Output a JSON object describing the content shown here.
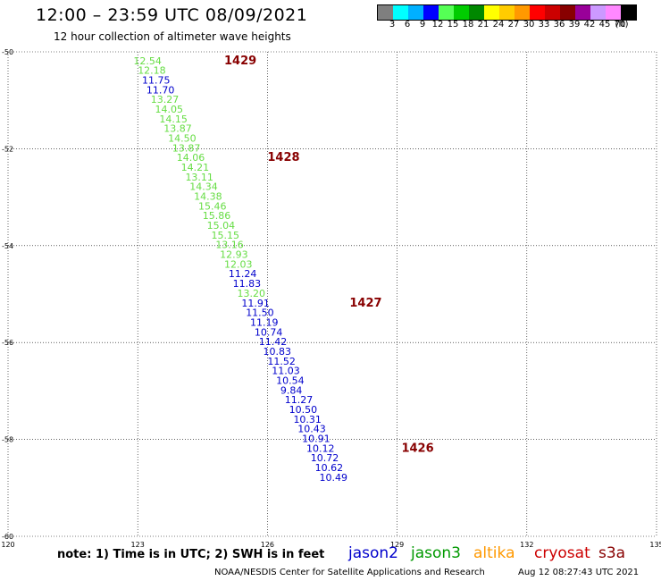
{
  "header": {
    "title": "12:00 – 23:59 UTC 08/09/2021",
    "subtitle": "12 hour collection of altimeter wave heights"
  },
  "colorbar": {
    "colors": [
      "#7f7f7f",
      "#00ffff",
      "#00b0ff",
      "#0000ff",
      "#55ff55",
      "#00cc00",
      "#008800",
      "#ffff00",
      "#ffcc00",
      "#ff9900",
      "#ff0000",
      "#cc0000",
      "#880000",
      "#990099",
      "#cc99ff",
      "#ff88ff",
      "#000000"
    ],
    "labels": [
      "3",
      "6",
      "9",
      "12",
      "15",
      "18",
      "21",
      "24",
      "27",
      "30",
      "33",
      "36",
      "39",
      "42",
      "45",
      "70",
      "(ft)"
    ]
  },
  "chart_data": {
    "type": "scatter",
    "title": "12:00 – 23:59 UTC 08/09/2021",
    "xlabel": "",
    "ylabel": "",
    "xlim": [
      120,
      135
    ],
    "ylim": [
      -60,
      -50
    ],
    "x_ticks": [
      "120",
      "123",
      "126",
      "129",
      "132",
      "135"
    ],
    "y_ticks": [
      "-50",
      "-52",
      "-54",
      "-56",
      "-58",
      "-60"
    ],
    "grid": true,
    "points": [
      {
        "lon": 122.9,
        "lat": -50.18,
        "value": "12.54",
        "sat": "jason3"
      },
      {
        "lon": 123.0,
        "lat": -50.38,
        "value": "12.18",
        "sat": "jason3"
      },
      {
        "lon": 123.1,
        "lat": -50.58,
        "value": "11.75",
        "sat": "jason2"
      },
      {
        "lon": 123.2,
        "lat": -50.78,
        "value": "11.70",
        "sat": "jason2"
      },
      {
        "lon": 123.3,
        "lat": -50.98,
        "value": "13.27",
        "sat": "jason3"
      },
      {
        "lon": 123.4,
        "lat": -51.18,
        "value": "14.05",
        "sat": "jason3"
      },
      {
        "lon": 123.5,
        "lat": -51.38,
        "value": "14.15",
        "sat": "jason3"
      },
      {
        "lon": 123.6,
        "lat": -51.58,
        "value": "13.87",
        "sat": "jason3"
      },
      {
        "lon": 123.7,
        "lat": -51.78,
        "value": "14.50",
        "sat": "jason3"
      },
      {
        "lon": 123.8,
        "lat": -51.98,
        "value": "13.87",
        "sat": "jason3"
      },
      {
        "lon": 123.9,
        "lat": -52.18,
        "value": "14.06",
        "sat": "jason3"
      },
      {
        "lon": 124.0,
        "lat": -52.38,
        "value": "14.21",
        "sat": "jason3"
      },
      {
        "lon": 124.1,
        "lat": -52.58,
        "value": "13.11",
        "sat": "jason3"
      },
      {
        "lon": 124.2,
        "lat": -52.78,
        "value": "14.34",
        "sat": "jason3"
      },
      {
        "lon": 124.3,
        "lat": -52.98,
        "value": "14.38",
        "sat": "jason3"
      },
      {
        "lon": 124.4,
        "lat": -53.18,
        "value": "15.46",
        "sat": "jason3"
      },
      {
        "lon": 124.5,
        "lat": -53.38,
        "value": "15.86",
        "sat": "jason3"
      },
      {
        "lon": 124.6,
        "lat": -53.58,
        "value": "15.04",
        "sat": "jason3"
      },
      {
        "lon": 124.7,
        "lat": -53.78,
        "value": "15.15",
        "sat": "jason3"
      },
      {
        "lon": 124.8,
        "lat": -53.98,
        "value": "13.16",
        "sat": "jason3"
      },
      {
        "lon": 124.9,
        "lat": -54.18,
        "value": "12.93",
        "sat": "jason3"
      },
      {
        "lon": 125.0,
        "lat": -54.38,
        "value": "12.03",
        "sat": "jason3"
      },
      {
        "lon": 125.1,
        "lat": -54.58,
        "value": "11.24",
        "sat": "jason2"
      },
      {
        "lon": 125.2,
        "lat": -54.78,
        "value": "11.83",
        "sat": "jason2"
      },
      {
        "lon": 125.3,
        "lat": -54.98,
        "value": "13.20",
        "sat": "jason3"
      },
      {
        "lon": 125.4,
        "lat": -55.18,
        "value": "11.91",
        "sat": "jason2"
      },
      {
        "lon": 125.5,
        "lat": -55.38,
        "value": "11.50",
        "sat": "jason2"
      },
      {
        "lon": 125.6,
        "lat": -55.58,
        "value": "11.19",
        "sat": "jason2"
      },
      {
        "lon": 125.7,
        "lat": -55.78,
        "value": "10.74",
        "sat": "jason2"
      },
      {
        "lon": 125.8,
        "lat": -55.98,
        "value": "11.42",
        "sat": "jason2"
      },
      {
        "lon": 125.9,
        "lat": -56.18,
        "value": "10.83",
        "sat": "jason2"
      },
      {
        "lon": 126.0,
        "lat": -56.38,
        "value": "11.52",
        "sat": "jason2"
      },
      {
        "lon": 126.1,
        "lat": -56.58,
        "value": "11.03",
        "sat": "jason2"
      },
      {
        "lon": 126.2,
        "lat": -56.78,
        "value": "10.54",
        "sat": "jason2"
      },
      {
        "lon": 126.3,
        "lat": -56.98,
        "value": "9.84",
        "sat": "jason2"
      },
      {
        "lon": 126.4,
        "lat": -57.18,
        "value": "11.27",
        "sat": "jason2"
      },
      {
        "lon": 126.5,
        "lat": -57.38,
        "value": "10.50",
        "sat": "jason2"
      },
      {
        "lon": 126.6,
        "lat": -57.58,
        "value": "10.31",
        "sat": "jason2"
      },
      {
        "lon": 126.7,
        "lat": -57.78,
        "value": "10.43",
        "sat": "jason2"
      },
      {
        "lon": 126.8,
        "lat": -57.98,
        "value": "10.91",
        "sat": "jason2"
      },
      {
        "lon": 126.9,
        "lat": -58.18,
        "value": "10.12",
        "sat": "jason2"
      },
      {
        "lon": 127.0,
        "lat": -58.38,
        "value": "10.72",
        "sat": "jason2"
      },
      {
        "lon": 127.1,
        "lat": -58.58,
        "value": "10.62",
        "sat": "jason2"
      },
      {
        "lon": 127.2,
        "lat": -58.78,
        "value": "10.49",
        "sat": "jason2"
      }
    ],
    "time_labels": [
      {
        "lon": 125.0,
        "lat": -50.18,
        "text": "1429"
      },
      {
        "lon": 126.0,
        "lat": -52.18,
        "text": "1428"
      },
      {
        "lon": 127.9,
        "lat": -55.18,
        "text": "1427"
      },
      {
        "lon": 129.1,
        "lat": -58.18,
        "text": "1426"
      }
    ],
    "legend": [
      "jason2",
      "jason3",
      "altika",
      "cryosat",
      "s3a"
    ],
    "legend_colors": {
      "jason2": "#0000cc",
      "jason3": "#009900",
      "altika": "#ff9900",
      "cryosat": "#cc0000",
      "s3a": "#880000"
    },
    "point_colors": {
      "jason2": "#0000cc",
      "jason3": "#66dd44"
    },
    "time_label_color": "#880000"
  },
  "footer": {
    "note": "note: 1) Time is in UTC; 2) SWH is in feet",
    "credit": "NOAA/NESDIS Center for Satellite Applications and Research",
    "timestamp": "Aug 12 08:27:43 UTC 2021"
  }
}
